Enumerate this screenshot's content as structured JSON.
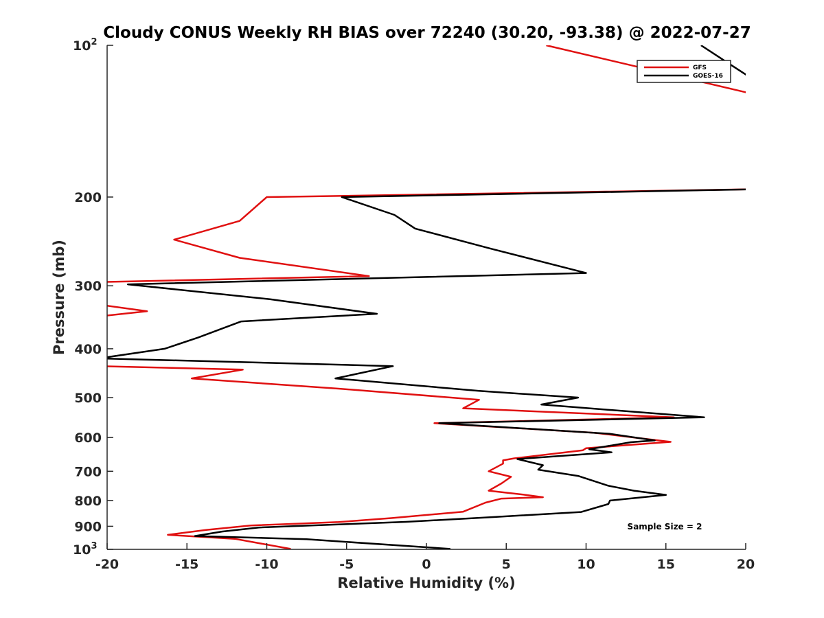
{
  "chart_data": {
    "type": "line",
    "title": "Cloudy CONUS Weekly RH BIAS over 72240 (30.20, -93.38) @ 2022-07-27",
    "xlabel": "Relative Humidity (%)",
    "ylabel": "Pressure (mb)",
    "xlim": [
      -20,
      20
    ],
    "ylim": [
      100,
      1000
    ],
    "yscale": "log",
    "ydirection": "reverse",
    "xticks": [
      "-20",
      "-15",
      "-10",
      "-5",
      "0",
      "5",
      "10",
      "15",
      "20"
    ],
    "yticks": [
      {
        "value": 100,
        "base": "10",
        "exp": "2"
      },
      {
        "value": 200,
        "base": "200",
        "exp": ""
      },
      {
        "value": 300,
        "base": "300",
        "exp": ""
      },
      {
        "value": 400,
        "base": "400",
        "exp": ""
      },
      {
        "value": 500,
        "base": "500",
        "exp": ""
      },
      {
        "value": 600,
        "base": "600",
        "exp": ""
      },
      {
        "value": 700,
        "base": "700",
        "exp": ""
      },
      {
        "value": 800,
        "base": "800",
        "exp": ""
      },
      {
        "value": 900,
        "base": "900",
        "exp": ""
      },
      {
        "value": 1000,
        "base": "10",
        "exp": "3"
      }
    ],
    "legend_position": "top-right",
    "annotation": "Sample Size = 2",
    "series": [
      {
        "name": "GFS",
        "color": "#e01010",
        "points": [
          [
            7.5,
            100
          ],
          [
            20.5,
            125
          ],
          [
            20.5,
            193
          ],
          [
            -10,
            200
          ],
          [
            -11.7,
            223
          ],
          [
            -15.8,
            243
          ],
          [
            -11.7,
            264
          ],
          [
            -3.6,
            287
          ],
          [
            -20.5,
            295
          ],
          [
            -20.5,
            327
          ],
          [
            -17.5,
            337
          ],
          [
            -20.5,
            345
          ],
          [
            -20.5,
            433
          ],
          [
            -11.5,
            440
          ],
          [
            -14.7,
            458
          ],
          [
            -5.5,
            480
          ],
          [
            3.3,
            505
          ],
          [
            2.3,
            525
          ],
          [
            15.5,
            547
          ],
          [
            0.5,
            562
          ],
          [
            10.5,
            587
          ],
          [
            15.3,
            612
          ],
          [
            10,
            630
          ],
          [
            9.8,
            636
          ],
          [
            5.5,
            660
          ],
          [
            4.8,
            666
          ],
          [
            4.8,
            676
          ],
          [
            3.9,
            700
          ],
          [
            5.3,
            718
          ],
          [
            4.7,
            740
          ],
          [
            3.9,
            765
          ],
          [
            6.1,
            779
          ],
          [
            7.3,
            788
          ],
          [
            4.7,
            793
          ],
          [
            3.7,
            808
          ],
          [
            2.3,
            842
          ],
          [
            -2.2,
            867
          ],
          [
            -5.5,
            883
          ],
          [
            -11,
            897
          ],
          [
            -13.8,
            915
          ],
          [
            -16.2,
            936
          ],
          [
            -12,
            953
          ],
          [
            -8.5,
            998
          ]
        ]
      },
      {
        "name": "GOES-16",
        "color": "#000000",
        "points": [
          [
            17.2,
            100
          ],
          [
            19.2,
            110
          ],
          [
            20.5,
            117
          ],
          [
            20.5,
            193
          ],
          [
            -5.3,
            200
          ],
          [
            -2,
            217
          ],
          [
            -0.7,
            231
          ],
          [
            4,
            253
          ],
          [
            10,
            283
          ],
          [
            -18.7,
            298
          ],
          [
            -9.8,
            319
          ],
          [
            -3.1,
            341
          ],
          [
            -11.6,
            353
          ],
          [
            -14.3,
            380
          ],
          [
            -16.4,
            400
          ],
          [
            -20.5,
            418
          ],
          [
            -2.1,
            433
          ],
          [
            -5.7,
            458
          ],
          [
            3.3,
            485
          ],
          [
            9.5,
            500
          ],
          [
            7.2,
            516
          ],
          [
            17.4,
            547
          ],
          [
            0.8,
            562
          ],
          [
            11.5,
            590
          ],
          [
            14.3,
            608
          ],
          [
            12.8,
            613
          ],
          [
            10.2,
            633
          ],
          [
            11.6,
            642
          ],
          [
            5.7,
            662
          ],
          [
            7.3,
            681
          ],
          [
            7,
            695
          ],
          [
            9.5,
            715
          ],
          [
            11.4,
            748
          ],
          [
            13,
            765
          ],
          [
            15,
            780
          ],
          [
            11.5,
            800
          ],
          [
            11.4,
            813
          ],
          [
            9.7,
            843
          ],
          [
            4.2,
            863
          ],
          [
            -1.3,
            882
          ],
          [
            -10.5,
            905
          ],
          [
            -12.8,
            922
          ],
          [
            -14.5,
            941
          ],
          [
            -7.5,
            955
          ],
          [
            1.5,
            998
          ]
        ]
      }
    ]
  }
}
